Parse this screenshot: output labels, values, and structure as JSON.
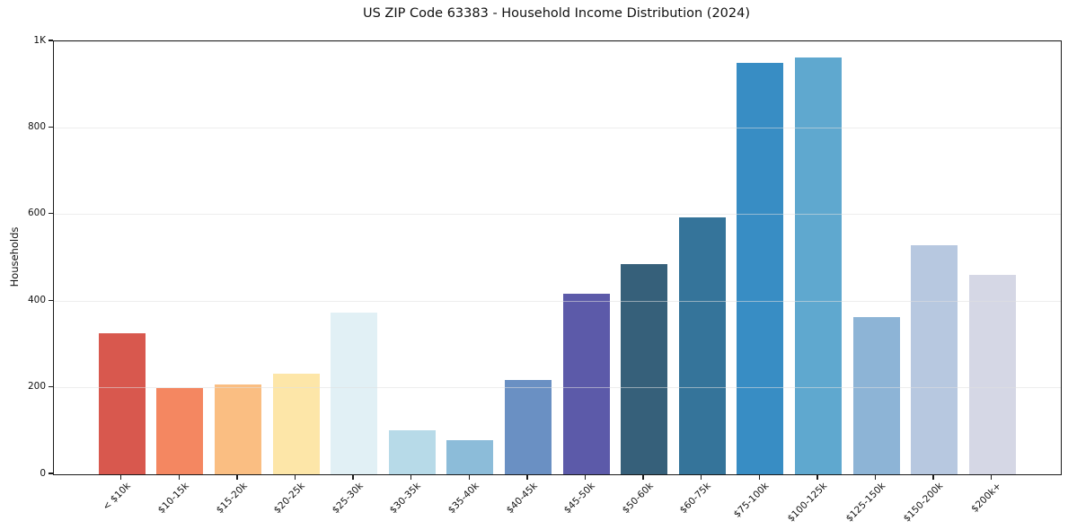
{
  "chart_data": {
    "type": "bar",
    "title": "US ZIP Code 63383 - Household Income Distribution (2024)",
    "xlabel": "",
    "ylabel": "Households",
    "categories": [
      "< $10k",
      "$10-15k",
      "$15-20k",
      "$20-25k",
      "$25-30k",
      "$30-35k",
      "$35-40k",
      "$40-45k",
      "$45-50k",
      "$50-60k",
      "$60-75k",
      "$75-100k",
      "$100-125k",
      "$125-150k",
      "$150-200k",
      "$200k+"
    ],
    "values": [
      325,
      199,
      207,
      233,
      374,
      102,
      78,
      217,
      418,
      485,
      593,
      950,
      962,
      364,
      530,
      460
    ],
    "bar_colors": [
      "#d8584e",
      "#f48761",
      "#fabe82",
      "#fde6a8",
      "#e1f0f5",
      "#b7dae8",
      "#8cbcd9",
      "#6a90c3",
      "#5c5aa9",
      "#36607a",
      "#35749a",
      "#388dc4",
      "#5fa8cf",
      "#8db4d6",
      "#b7c8e0",
      "#d5d7e5"
    ],
    "ylim": [
      0,
      1000
    ],
    "y_ticks": [
      {
        "value": 0,
        "label": "0"
      },
      {
        "value": 200,
        "label": "200"
      },
      {
        "value": 400,
        "label": "400"
      },
      {
        "value": 600,
        "label": "600"
      },
      {
        "value": 800,
        "label": "800"
      },
      {
        "value": 1000,
        "label": "1K"
      }
    ],
    "grid": "horizontal",
    "legend": "none",
    "x_tick_rotation_deg": 45
  },
  "colors": {
    "background": "#ffffff",
    "spine": "#1a1a1a",
    "gridline": "#ebebeb",
    "text": "#111111"
  }
}
